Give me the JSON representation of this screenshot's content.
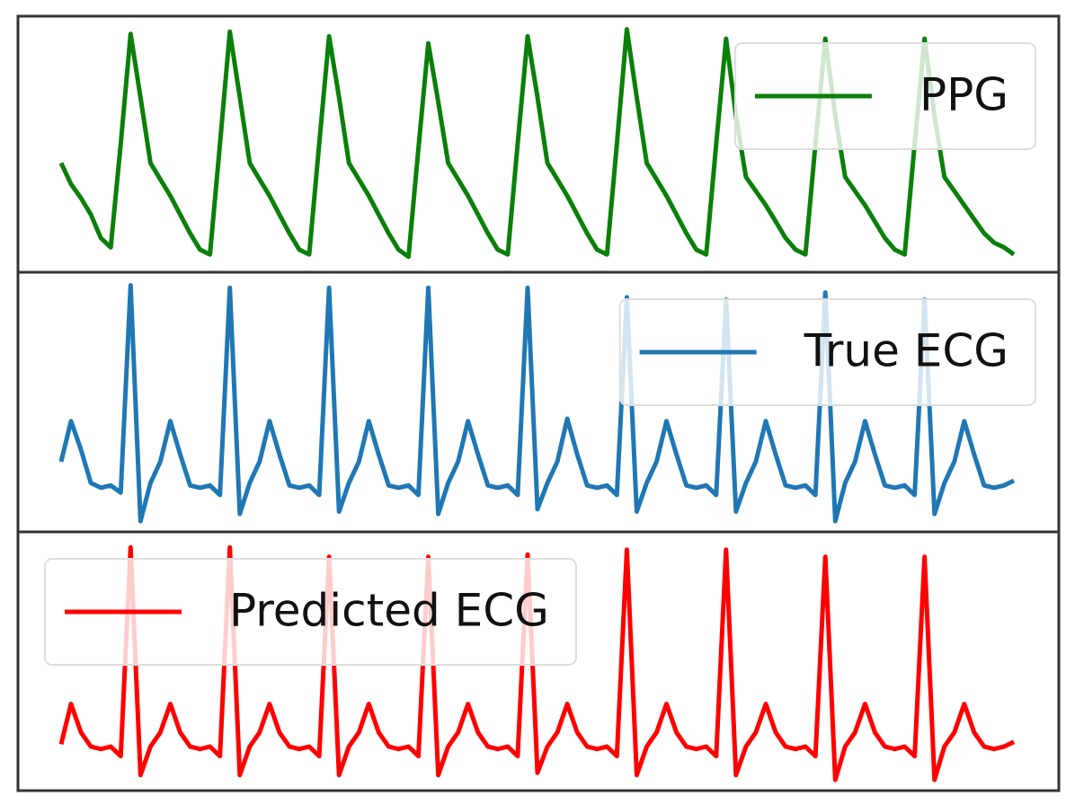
{
  "chart_data": [
    {
      "type": "line",
      "legend": "upper right",
      "ylim": [
        0,
        1
      ],
      "series": [
        {
          "name": "PPG",
          "color": "#0a800a",
          "values": [
            0.42,
            0.33,
            0.27,
            0.2,
            0.1,
            0.06,
            0.5,
            0.97,
            0.7,
            0.42,
            0.35,
            0.28,
            0.2,
            0.12,
            0.05,
            0.03,
            0.5,
            0.98,
            0.7,
            0.42,
            0.35,
            0.28,
            0.2,
            0.12,
            0.05,
            0.03,
            0.5,
            0.96,
            0.7,
            0.42,
            0.35,
            0.28,
            0.2,
            0.12,
            0.05,
            0.02,
            0.48,
            0.93,
            0.68,
            0.42,
            0.35,
            0.28,
            0.2,
            0.12,
            0.05,
            0.03,
            0.5,
            0.96,
            0.7,
            0.42,
            0.35,
            0.28,
            0.2,
            0.12,
            0.05,
            0.03,
            0.5,
            0.99,
            0.7,
            0.42,
            0.35,
            0.28,
            0.2,
            0.12,
            0.05,
            0.03,
            0.5,
            0.95,
            0.62,
            0.36,
            0.3,
            0.24,
            0.17,
            0.1,
            0.05,
            0.03,
            0.5,
            0.95,
            0.62,
            0.36,
            0.3,
            0.24,
            0.17,
            0.1,
            0.05,
            0.03,
            0.5,
            0.95,
            0.62,
            0.36,
            0.3,
            0.24,
            0.18,
            0.12,
            0.08,
            0.06,
            0.03
          ]
        }
      ]
    },
    {
      "type": "line",
      "legend": "upper right",
      "ylim": [
        0,
        1
      ],
      "series": [
        {
          "name": "True ECG",
          "color": "#1f77b4",
          "values": [
            0.25,
            0.42,
            0.3,
            0.16,
            0.14,
            0.15,
            0.12,
            0.99,
            0.0,
            0.16,
            0.25,
            0.42,
            0.28,
            0.15,
            0.14,
            0.15,
            0.11,
            0.98,
            0.03,
            0.16,
            0.25,
            0.42,
            0.28,
            0.15,
            0.14,
            0.15,
            0.11,
            0.98,
            0.04,
            0.16,
            0.25,
            0.42,
            0.28,
            0.15,
            0.14,
            0.15,
            0.11,
            0.98,
            0.03,
            0.16,
            0.25,
            0.42,
            0.28,
            0.15,
            0.14,
            0.15,
            0.11,
            0.98,
            0.05,
            0.16,
            0.25,
            0.43,
            0.28,
            0.15,
            0.14,
            0.15,
            0.11,
            0.94,
            0.04,
            0.16,
            0.25,
            0.42,
            0.28,
            0.15,
            0.14,
            0.15,
            0.11,
            0.93,
            0.04,
            0.16,
            0.25,
            0.42,
            0.28,
            0.15,
            0.14,
            0.15,
            0.11,
            0.96,
            0.0,
            0.16,
            0.25,
            0.42,
            0.28,
            0.15,
            0.14,
            0.15,
            0.11,
            0.93,
            0.03,
            0.16,
            0.25,
            0.42,
            0.28,
            0.15,
            0.14,
            0.15,
            0.17
          ]
        }
      ]
    },
    {
      "type": "line",
      "legend": "upper left",
      "ylim": [
        0,
        1
      ],
      "series": [
        {
          "name": "Predicted ECG",
          "color": "#ff0000",
          "values": [
            0.15,
            0.32,
            0.2,
            0.14,
            0.13,
            0.14,
            0.1,
            0.98,
            0.02,
            0.14,
            0.2,
            0.32,
            0.2,
            0.14,
            0.13,
            0.14,
            0.1,
            0.98,
            0.02,
            0.14,
            0.2,
            0.32,
            0.2,
            0.14,
            0.13,
            0.14,
            0.1,
            0.94,
            0.02,
            0.14,
            0.2,
            0.32,
            0.2,
            0.14,
            0.13,
            0.14,
            0.1,
            0.94,
            0.02,
            0.14,
            0.2,
            0.32,
            0.2,
            0.14,
            0.13,
            0.14,
            0.1,
            0.95,
            0.03,
            0.14,
            0.2,
            0.32,
            0.2,
            0.14,
            0.13,
            0.14,
            0.1,
            0.97,
            0.02,
            0.14,
            0.2,
            0.32,
            0.2,
            0.14,
            0.13,
            0.14,
            0.1,
            0.97,
            0.02,
            0.14,
            0.2,
            0.32,
            0.2,
            0.14,
            0.13,
            0.14,
            0.1,
            0.94,
            0.0,
            0.14,
            0.2,
            0.32,
            0.2,
            0.14,
            0.13,
            0.14,
            0.1,
            0.94,
            0.0,
            0.14,
            0.2,
            0.32,
            0.2,
            0.14,
            0.13,
            0.14,
            0.16
          ]
        }
      ]
    }
  ]
}
